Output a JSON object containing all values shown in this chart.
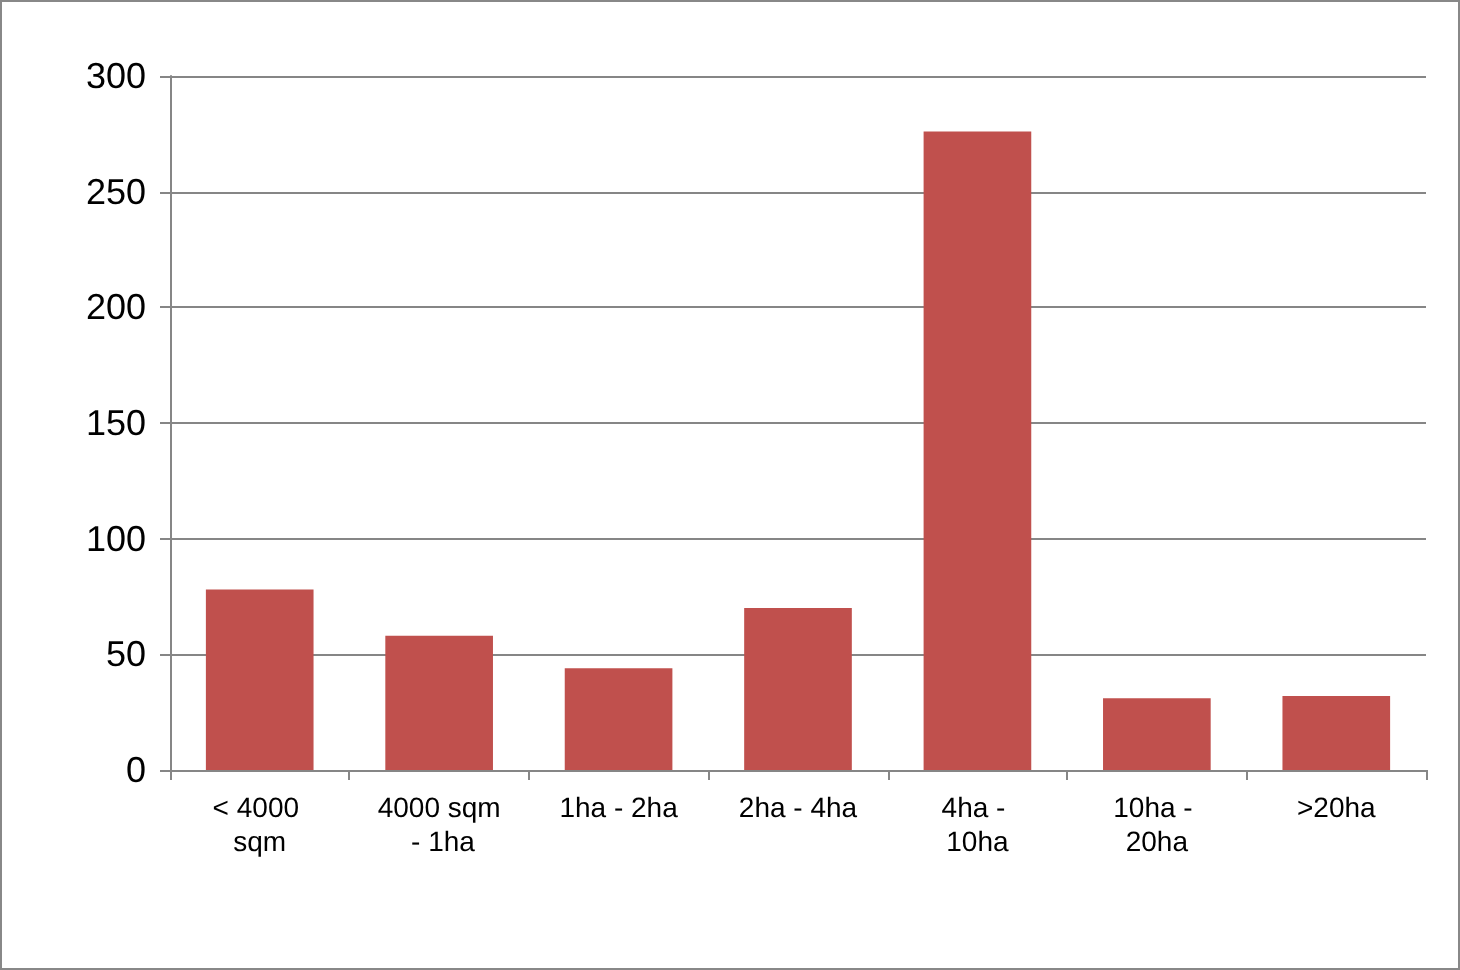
{
  "chart_data": {
    "type": "bar",
    "categories": [
      "< 4000 sqm",
      "4000 sqm - 1ha",
      "1ha - 2ha",
      "2ha - 4ha",
      "4ha - 10ha",
      "10ha - 20ha",
      ">20ha"
    ],
    "values": [
      78,
      58,
      44,
      70,
      276,
      31,
      32
    ],
    "color": "#c0504d",
    "ylim": [
      0,
      300
    ],
    "yticks": [
      0,
      50,
      100,
      150,
      200,
      250,
      300
    ],
    "grid": "y"
  }
}
